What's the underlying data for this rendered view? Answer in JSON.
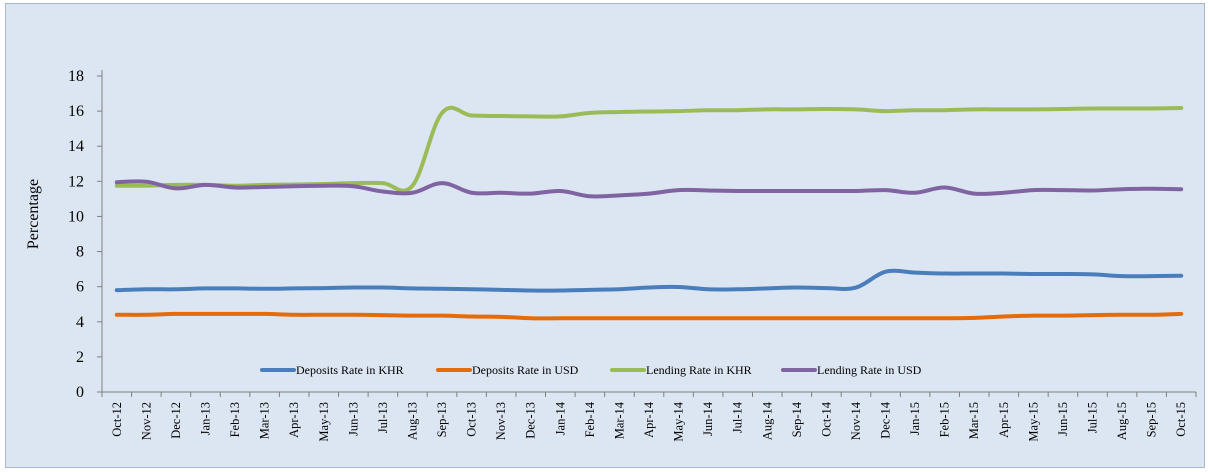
{
  "chart_data": {
    "type": "line",
    "title": "",
    "xlabel": "",
    "ylabel": "Percentage",
    "ylim": [
      0,
      18
    ],
    "yticks": [
      0,
      2,
      4,
      6,
      8,
      10,
      12,
      14,
      16,
      18
    ],
    "grid": false,
    "legend_position": "bottom-inside",
    "categories": [
      "Oct-12",
      "Nov-12",
      "Dec-12",
      "Jan-13",
      "Feb-13",
      "Mar-13",
      "Apr-13",
      "May-13",
      "Jun-13",
      "Jul-13",
      "Aug-13",
      "Sep-13",
      "Oct-13",
      "Nov-13",
      "Dec-13",
      "Jan-14",
      "Feb-14",
      "Mar-14",
      "Apr-14",
      "May-14",
      "Jun-14",
      "Jul-14",
      "Aug-14",
      "Sep-14",
      "Oct-14",
      "Nov-14",
      "Dec-14",
      "Jan-15",
      "Feb-15",
      "Mar-15",
      "Apr-15",
      "May-15",
      "Jun-15",
      "Jul-15",
      "Aug-15",
      "Sep-15",
      "Oct-15"
    ],
    "series": [
      {
        "name": "Deposits Rate in KHR",
        "color": "#4a7ebb",
        "values": [
          5.8,
          5.85,
          5.85,
          5.9,
          5.9,
          5.88,
          5.9,
          5.92,
          5.95,
          5.95,
          5.9,
          5.88,
          5.85,
          5.82,
          5.78,
          5.78,
          5.82,
          5.85,
          5.95,
          5.98,
          5.85,
          5.85,
          5.9,
          5.95,
          5.92,
          5.95,
          6.85,
          6.8,
          6.75,
          6.75,
          6.75,
          6.72,
          6.72,
          6.7,
          6.6,
          6.6,
          6.62
        ]
      },
      {
        "name": "Deposits Rate in USD",
        "color": "#e46c0a",
        "values": [
          4.4,
          4.4,
          4.45,
          4.45,
          4.45,
          4.45,
          4.4,
          4.4,
          4.4,
          4.38,
          4.35,
          4.35,
          4.3,
          4.28,
          4.2,
          4.2,
          4.2,
          4.2,
          4.2,
          4.2,
          4.2,
          4.2,
          4.2,
          4.2,
          4.2,
          4.2,
          4.2,
          4.2,
          4.2,
          4.22,
          4.3,
          4.35,
          4.35,
          4.38,
          4.4,
          4.4,
          4.45
        ]
      },
      {
        "name": "Lending Rate in KHR",
        "color": "#9bbb59",
        "values": [
          11.75,
          11.75,
          11.8,
          11.8,
          11.75,
          11.8,
          11.82,
          11.85,
          11.9,
          11.9,
          11.75,
          15.9,
          15.75,
          15.72,
          15.7,
          15.7,
          15.9,
          15.95,
          15.98,
          16.0,
          16.05,
          16.05,
          16.1,
          16.1,
          16.12,
          16.1,
          16.0,
          16.05,
          16.05,
          16.1,
          16.1,
          16.1,
          16.12,
          16.15,
          16.15,
          16.15,
          16.18
        ]
      },
      {
        "name": "Lending Rate in USD",
        "color": "#8064a2",
        "values": [
          11.95,
          11.98,
          11.6,
          11.8,
          11.65,
          11.68,
          11.72,
          11.75,
          11.72,
          11.42,
          11.35,
          11.9,
          11.35,
          11.35,
          11.3,
          11.45,
          11.15,
          11.2,
          11.3,
          11.5,
          11.48,
          11.45,
          11.45,
          11.45,
          11.45,
          11.45,
          11.5,
          11.35,
          11.65,
          11.3,
          11.35,
          11.5,
          11.5,
          11.48,
          11.55,
          11.58,
          11.55
        ]
      }
    ]
  }
}
